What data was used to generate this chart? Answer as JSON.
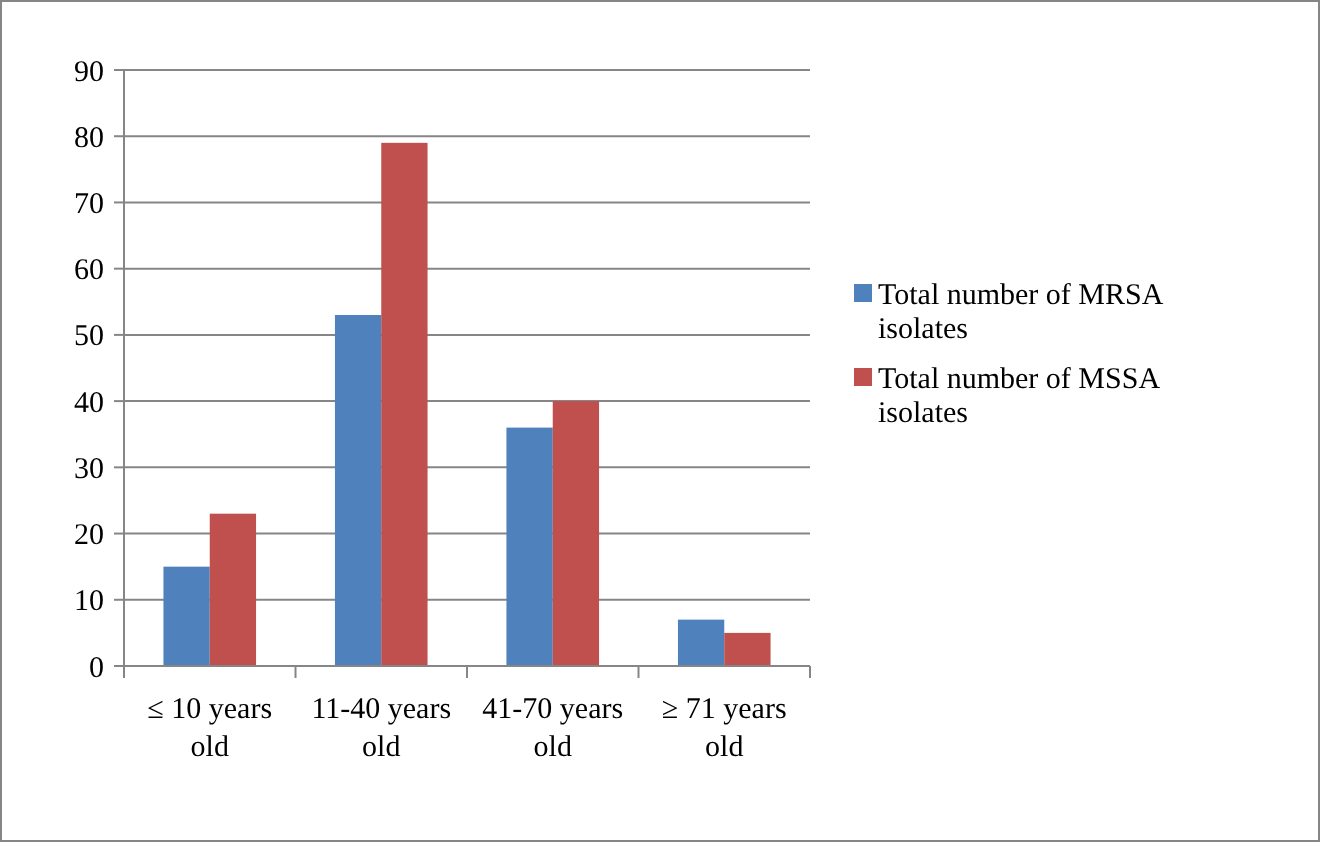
{
  "chart_data": {
    "type": "bar",
    "categories": [
      "≤ 10 years old",
      "11-40 years old",
      "41-70 years old",
      "≥ 71 years old"
    ],
    "series": [
      {
        "name": "Total number of MRSA isolates",
        "color": "#4f81bd",
        "values": [
          15,
          53,
          36,
          7
        ]
      },
      {
        "name": "Total number of MSSA isolates",
        "color": "#c0504d",
        "values": [
          23,
          79,
          40,
          5
        ]
      }
    ],
    "ylim": [
      0,
      90
    ],
    "yticks": [
      0,
      10,
      20,
      30,
      40,
      50,
      60,
      70,
      80,
      90
    ],
    "grid": "y",
    "legend": "right"
  }
}
